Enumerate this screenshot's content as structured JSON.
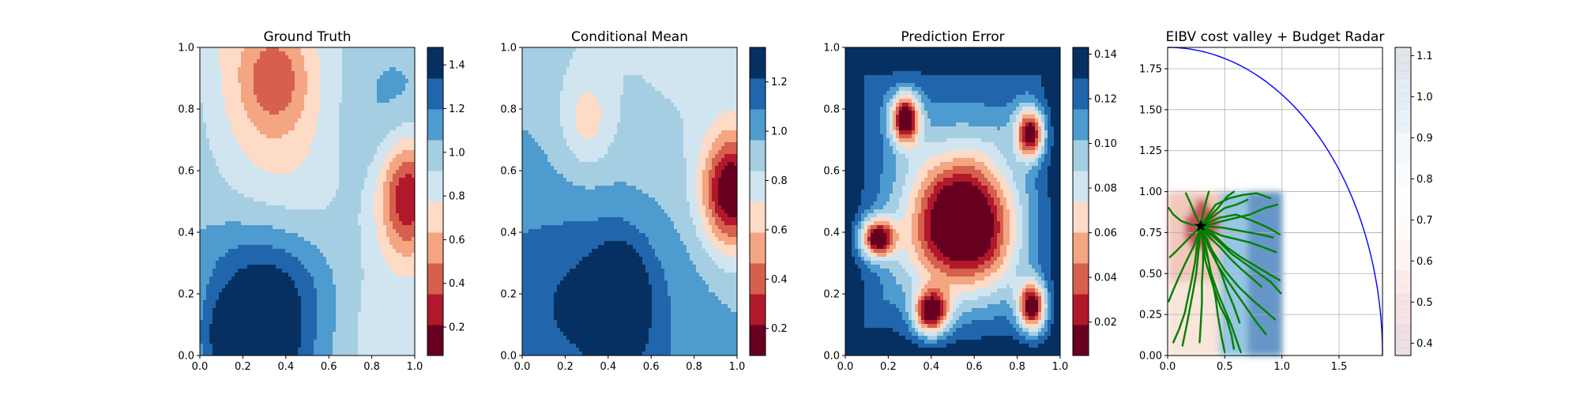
{
  "chart_data": [
    {
      "type": "heatmap",
      "title": "Ground Truth",
      "xlabel": "",
      "ylabel": "",
      "xlim": [
        0.0,
        1.0
      ],
      "ylim": [
        0.0,
        1.0
      ],
      "x_ticks": [
        "0.0",
        "0.2",
        "0.4",
        "0.6",
        "0.8",
        "1.0"
      ],
      "y_ticks": [
        "0.0",
        "0.2",
        "0.4",
        "0.6",
        "0.8",
        "1.0"
      ],
      "colormap": "RdBu",
      "colorbar": {
        "min": 0.07,
        "max": 1.48,
        "ticks": [
          "0.2",
          "0.4",
          "0.6",
          "0.8",
          "1.0",
          "1.2",
          "1.4"
        ]
      },
      "features": [
        {
          "kind": "low",
          "x": 0.97,
          "y": 0.52,
          "rx": 0.14,
          "ry": 0.2,
          "value": 0.1
        },
        {
          "kind": "low",
          "x": 0.35,
          "y": 0.9,
          "rx": 0.15,
          "ry": 0.16,
          "value": 0.65
        },
        {
          "kind": "high",
          "x": 0.22,
          "y": 0.05,
          "rx": 0.17,
          "ry": 0.12,
          "value": 1.45
        },
        {
          "kind": "high",
          "x": 0.32,
          "y": 0.22,
          "rx": 0.3,
          "ry": 0.2,
          "value": 1.25
        }
      ]
    },
    {
      "type": "heatmap",
      "title": "Conditional Mean",
      "xlabel": "",
      "ylabel": "",
      "xlim": [
        0.0,
        1.0
      ],
      "ylim": [
        0.0,
        1.0
      ],
      "x_ticks": [
        "0.0",
        "0.2",
        "0.4",
        "0.6",
        "0.8",
        "1.0"
      ],
      "y_ticks": [
        "0.0",
        "0.2",
        "0.4",
        "0.6",
        "0.8",
        "1.0"
      ],
      "colormap": "RdBu",
      "colorbar": {
        "min": 0.09,
        "max": 1.34,
        "ticks": [
          "0.2",
          "0.4",
          "0.6",
          "0.8",
          "1.0",
          "1.2"
        ]
      },
      "features": [
        {
          "kind": "low",
          "x": 0.97,
          "y": 0.53,
          "rx": 0.13,
          "ry": 0.18,
          "value": 0.12
        },
        {
          "kind": "low",
          "x": 0.3,
          "y": 0.76,
          "rx": 0.12,
          "ry": 0.16,
          "value": 0.7
        },
        {
          "kind": "high",
          "x": 0.46,
          "y": 0.16,
          "rx": 0.12,
          "ry": 0.19,
          "value": 1.3
        },
        {
          "kind": "high",
          "x": 0.36,
          "y": 0.22,
          "rx": 0.34,
          "ry": 0.25,
          "value": 1.15
        }
      ]
    },
    {
      "type": "heatmap",
      "title": "Prediction Error",
      "xlabel": "",
      "ylabel": "",
      "xlim": [
        0.0,
        1.0
      ],
      "ylim": [
        0.0,
        1.0
      ],
      "x_ticks": [
        "0.0",
        "0.2",
        "0.4",
        "0.6",
        "0.8",
        "1.0"
      ],
      "y_ticks": [
        "0.0",
        "0.2",
        "0.4",
        "0.6",
        "0.8",
        "1.0"
      ],
      "colormap": "RdBu",
      "colorbar": {
        "min": 0.005,
        "max": 0.143,
        "ticks": [
          "0.02",
          "0.04",
          "0.06",
          "0.08",
          "0.10",
          "0.12",
          "0.14"
        ]
      },
      "features": [
        {
          "kind": "low",
          "x": 0.55,
          "y": 0.42,
          "rx": 0.3,
          "ry": 0.26,
          "value": 0.015
        },
        {
          "kind": "low",
          "x": 0.28,
          "y": 0.77,
          "rx": 0.08,
          "ry": 0.1,
          "value": 0.02
        },
        {
          "kind": "low",
          "x": 0.86,
          "y": 0.72,
          "rx": 0.08,
          "ry": 0.1,
          "value": 0.02
        },
        {
          "kind": "low",
          "x": 0.15,
          "y": 0.38,
          "rx": 0.1,
          "ry": 0.08,
          "value": 0.02
        },
        {
          "kind": "low",
          "x": 0.87,
          "y": 0.16,
          "rx": 0.08,
          "ry": 0.1,
          "value": 0.02
        },
        {
          "kind": "low",
          "x": 0.4,
          "y": 0.14,
          "rx": 0.1,
          "ry": 0.09,
          "value": 0.02
        }
      ]
    },
    {
      "type": "line",
      "title": "EIBV cost valley + Budget Radar",
      "xlabel": "",
      "ylabel": "",
      "xlim": [
        0.0,
        1.88
      ],
      "ylim": [
        0.0,
        1.88
      ],
      "x_ticks": [
        "0.0",
        "0.5",
        "1.0",
        "1.5"
      ],
      "y_ticks": [
        "0.00",
        "0.25",
        "0.50",
        "0.75",
        "1.00",
        "1.25",
        "1.50",
        "1.75"
      ],
      "grid": true,
      "colormap": "RdBu",
      "colorbar": {
        "min": 0.37,
        "max": 1.12,
        "ticks": [
          "0.4",
          "0.5",
          "0.6",
          "0.7",
          "0.8",
          "0.9",
          "1.0",
          "1.1"
        ]
      },
      "cost_field_extent": {
        "x": [
          0.0,
          1.0
        ],
        "y": [
          0.0,
          1.0
        ]
      },
      "budget_radar": {
        "center": [
          0.0,
          0.0
        ],
        "radius": 1.88,
        "color": "#0000ff"
      },
      "current_location": {
        "x": 0.29,
        "y": 0.79,
        "marker": "star",
        "color": "#000000"
      },
      "candidate_paths_color": "#008000",
      "candidate_paths": [
        [
          [
            0.29,
            0.79
          ],
          [
            0.34,
            0.82
          ],
          [
            0.42,
            0.86
          ],
          [
            0.5,
            0.9
          ],
          [
            0.6,
            0.92
          ],
          [
            0.7,
            0.95
          ]
        ],
        [
          [
            0.29,
            0.79
          ],
          [
            0.36,
            0.84
          ],
          [
            0.44,
            0.9
          ],
          [
            0.52,
            0.97
          ],
          [
            0.58,
            1.0
          ]
        ],
        [
          [
            0.29,
            0.79
          ],
          [
            0.38,
            0.8
          ],
          [
            0.48,
            0.82
          ],
          [
            0.6,
            0.84
          ],
          [
            0.72,
            0.86
          ],
          [
            0.85,
            0.9
          ],
          [
            0.96,
            0.92
          ]
        ],
        [
          [
            0.29,
            0.79
          ],
          [
            0.38,
            0.76
          ],
          [
            0.48,
            0.73
          ],
          [
            0.6,
            0.71
          ],
          [
            0.72,
            0.69
          ],
          [
            0.84,
            0.66
          ],
          [
            0.95,
            0.63
          ]
        ],
        [
          [
            0.29,
            0.79
          ],
          [
            0.37,
            0.72
          ],
          [
            0.46,
            0.66
          ],
          [
            0.55,
            0.59
          ],
          [
            0.64,
            0.53
          ],
          [
            0.74,
            0.47
          ],
          [
            0.82,
            0.42
          ]
        ],
        [
          [
            0.29,
            0.79
          ],
          [
            0.4,
            0.74
          ],
          [
            0.52,
            0.66
          ],
          [
            0.64,
            0.6
          ],
          [
            0.76,
            0.55
          ],
          [
            0.88,
            0.5
          ],
          [
            0.98,
            0.46
          ]
        ],
        [
          [
            0.29,
            0.79
          ],
          [
            0.35,
            0.7
          ],
          [
            0.41,
            0.6
          ],
          [
            0.47,
            0.5
          ],
          [
            0.52,
            0.4
          ],
          [
            0.58,
            0.3
          ],
          [
            0.63,
            0.2
          ]
        ],
        [
          [
            0.29,
            0.79
          ],
          [
            0.32,
            0.68
          ],
          [
            0.36,
            0.57
          ],
          [
            0.39,
            0.46
          ],
          [
            0.42,
            0.35
          ],
          [
            0.44,
            0.24
          ],
          [
            0.47,
            0.12
          ],
          [
            0.5,
            0.02
          ]
        ],
        [
          [
            0.29,
            0.79
          ],
          [
            0.31,
            0.68
          ],
          [
            0.31,
            0.56
          ],
          [
            0.3,
            0.44
          ],
          [
            0.3,
            0.32
          ],
          [
            0.29,
            0.2
          ],
          [
            0.28,
            0.08
          ]
        ],
        [
          [
            0.29,
            0.79
          ],
          [
            0.26,
            0.68
          ],
          [
            0.24,
            0.57
          ],
          [
            0.21,
            0.46
          ],
          [
            0.18,
            0.36
          ],
          [
            0.15,
            0.26
          ],
          [
            0.1,
            0.16
          ],
          [
            0.05,
            0.08
          ]
        ],
        [
          [
            0.29,
            0.79
          ],
          [
            0.22,
            0.74
          ],
          [
            0.15,
            0.69
          ],
          [
            0.08,
            0.64
          ],
          [
            0.02,
            0.6
          ]
        ],
        [
          [
            0.29,
            0.79
          ],
          [
            0.2,
            0.8
          ],
          [
            0.12,
            0.82
          ],
          [
            0.05,
            0.86
          ],
          [
            0.01,
            0.9
          ]
        ],
        [
          [
            0.29,
            0.79
          ],
          [
            0.24,
            0.86
          ],
          [
            0.2,
            0.93
          ],
          [
            0.16,
            0.99
          ]
        ],
        [
          [
            0.29,
            0.79
          ],
          [
            0.31,
            0.87
          ],
          [
            0.34,
            0.95
          ],
          [
            0.36,
            1.0
          ]
        ],
        [
          [
            0.29,
            0.79
          ],
          [
            0.45,
            0.84
          ],
          [
            0.6,
            0.86
          ],
          [
            0.75,
            0.82
          ],
          [
            0.88,
            0.78
          ],
          [
            0.98,
            0.74
          ]
        ],
        [
          [
            0.29,
            0.79
          ],
          [
            0.44,
            0.7
          ],
          [
            0.56,
            0.62
          ],
          [
            0.68,
            0.56
          ],
          [
            0.8,
            0.5
          ],
          [
            0.9,
            0.45
          ],
          [
            0.99,
            0.38
          ]
        ],
        [
          [
            0.29,
            0.79
          ],
          [
            0.36,
            0.66
          ],
          [
            0.44,
            0.55
          ],
          [
            0.53,
            0.45
          ],
          [
            0.62,
            0.36
          ],
          [
            0.7,
            0.28
          ],
          [
            0.78,
            0.2
          ],
          [
            0.86,
            0.13
          ]
        ],
        [
          [
            0.29,
            0.79
          ],
          [
            0.34,
            0.64
          ],
          [
            0.38,
            0.5
          ],
          [
            0.44,
            0.38
          ],
          [
            0.5,
            0.28
          ],
          [
            0.56,
            0.18
          ],
          [
            0.6,
            0.1
          ],
          [
            0.64,
            0.02
          ]
        ],
        [
          [
            0.29,
            0.79
          ],
          [
            0.27,
            0.64
          ],
          [
            0.25,
            0.5
          ],
          [
            0.22,
            0.38
          ],
          [
            0.19,
            0.27
          ],
          [
            0.16,
            0.16
          ],
          [
            0.13,
            0.06
          ]
        ],
        [
          [
            0.29,
            0.79
          ],
          [
            0.23,
            0.67
          ],
          [
            0.16,
            0.57
          ],
          [
            0.1,
            0.48
          ],
          [
            0.05,
            0.4
          ],
          [
            0.01,
            0.33
          ]
        ],
        [
          [
            0.29,
            0.79
          ],
          [
            0.48,
            0.78
          ],
          [
            0.64,
            0.76
          ],
          [
            0.8,
            0.74
          ],
          [
            0.92,
            0.72
          ]
        ],
        [
          [
            0.29,
            0.79
          ],
          [
            0.42,
            0.92
          ],
          [
            0.54,
            0.96
          ],
          [
            0.66,
            0.98
          ],
          [
            0.78,
            0.99
          ],
          [
            0.9,
            0.96
          ]
        ],
        [
          [
            0.29,
            0.79
          ],
          [
            0.33,
            0.58
          ],
          [
            0.4,
            0.42
          ],
          [
            0.46,
            0.3
          ],
          [
            0.52,
            0.22
          ],
          [
            0.56,
            0.12
          ],
          [
            0.58,
            0.04
          ]
        ],
        [
          [
            0.29,
            0.79
          ],
          [
            0.39,
            0.64
          ],
          [
            0.5,
            0.52
          ],
          [
            0.62,
            0.42
          ],
          [
            0.74,
            0.34
          ],
          [
            0.84,
            0.28
          ],
          [
            0.94,
            0.22
          ]
        ]
      ]
    }
  ]
}
